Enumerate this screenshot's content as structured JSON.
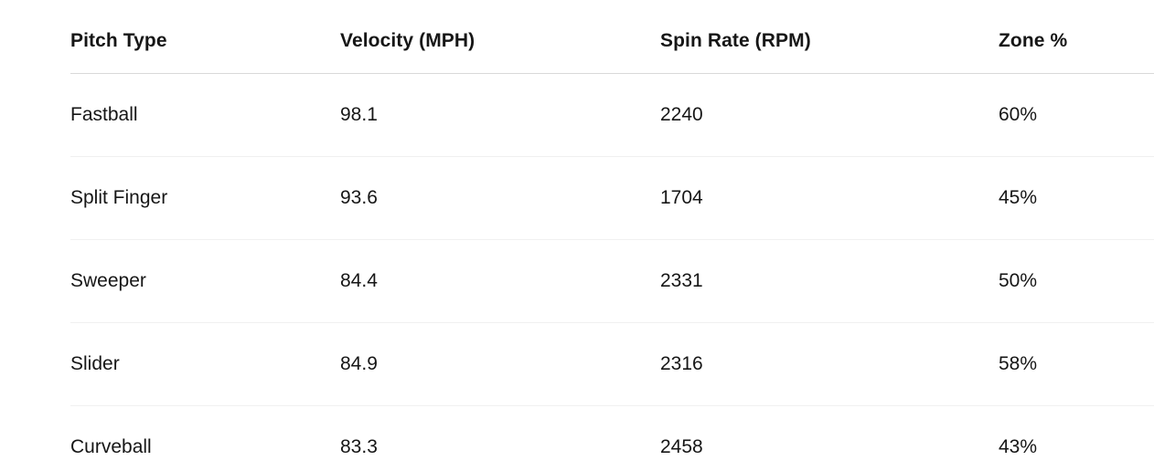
{
  "table": {
    "columns": [
      "Pitch Type",
      "Velocity (MPH)",
      "Spin Rate (RPM)",
      "Zone %"
    ],
    "rows": [
      [
        "Fastball",
        "98.1",
        "2240",
        "60%"
      ],
      [
        "Split Finger",
        "93.6",
        "1704",
        "45%"
      ],
      [
        "Sweeper",
        "84.4",
        "2331",
        "50%"
      ],
      [
        "Slider",
        "84.9",
        "2316",
        "58%"
      ],
      [
        "Curveball",
        "83.3",
        "2458",
        "43%"
      ]
    ]
  },
  "chart_data": {
    "type": "table",
    "columns": [
      "Pitch Type",
      "Velocity (MPH)",
      "Spin Rate (RPM)",
      "Zone %"
    ],
    "pitch_types": [
      "Fastball",
      "Split Finger",
      "Sweeper",
      "Slider",
      "Curveball"
    ],
    "velocity_mph": [
      98.1,
      93.6,
      84.4,
      84.9,
      83.3
    ],
    "spin_rate_rpm": [
      2240,
      1704,
      2331,
      2316,
      2458
    ],
    "zone_pct": [
      60,
      45,
      50,
      58,
      43
    ]
  },
  "colors": {
    "background": "#ffffff",
    "text": "#161616",
    "header_divider": "#d9d9d9",
    "row_divider": "#f0f0f0"
  }
}
